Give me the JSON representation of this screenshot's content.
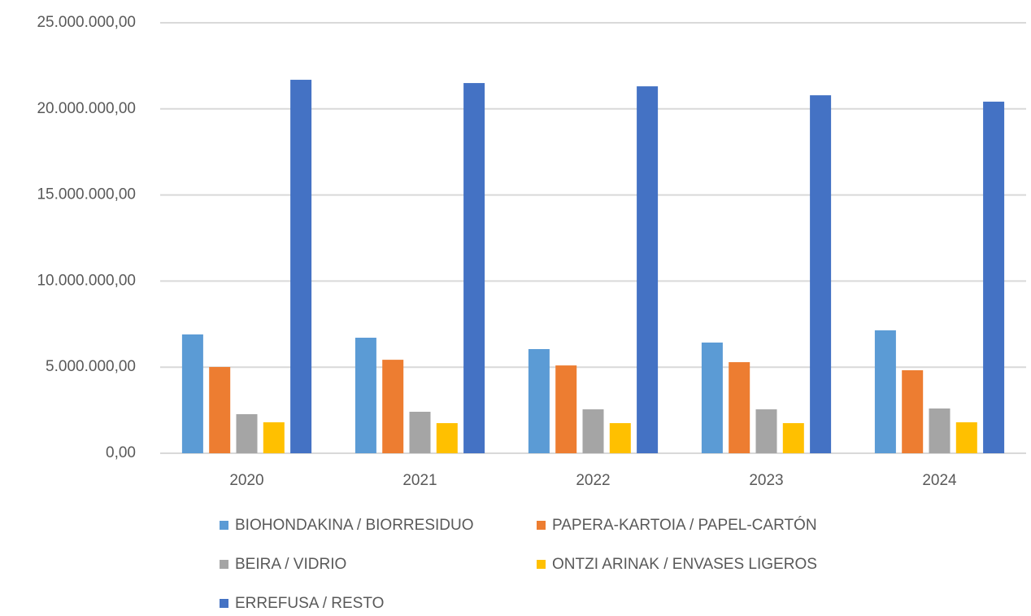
{
  "chart_data": {
    "type": "bar",
    "categories": [
      "2020",
      "2021",
      "2022",
      "2023",
      "2024"
    ],
    "series": [
      {
        "name": "BIOHONDAKINA / BIORRESIDUO",
        "color": "#5b9bd5",
        "values": [
          6900000,
          6710000,
          6050000,
          6430000,
          7140000
        ]
      },
      {
        "name": "PAPERA-KARTOIA / PAPEL-CARTÓN",
        "color": "#ed7d31",
        "values": [
          5010000,
          5430000,
          5100000,
          5290000,
          4820000
        ]
      },
      {
        "name": "BEIRA / VIDRIO",
        "color": "#a5a5a5",
        "values": [
          2270000,
          2410000,
          2550000,
          2550000,
          2600000
        ]
      },
      {
        "name": "ONTZI ARINAK / ENVASES LIGEROS",
        "color": "#ffc000",
        "values": [
          1800000,
          1750000,
          1750000,
          1750000,
          1800000
        ]
      },
      {
        "name": "ERREFUSA / RESTO",
        "color": "#4472c4",
        "values": [
          21690000,
          21500000,
          21310000,
          20790000,
          20420000
        ]
      }
    ],
    "ylim": [
      0,
      25000000
    ],
    "yticks": [
      {
        "value": 0,
        "label": "0,00"
      },
      {
        "value": 5000000,
        "label": "5.000.000,00"
      },
      {
        "value": 10000000,
        "label": "10.000.000,00"
      },
      {
        "value": 15000000,
        "label": "15.000.000,00"
      },
      {
        "value": 20000000,
        "label": "20.000.000,00"
      },
      {
        "value": 25000000,
        "label": "25.000.000,00"
      }
    ],
    "grid": true
  }
}
